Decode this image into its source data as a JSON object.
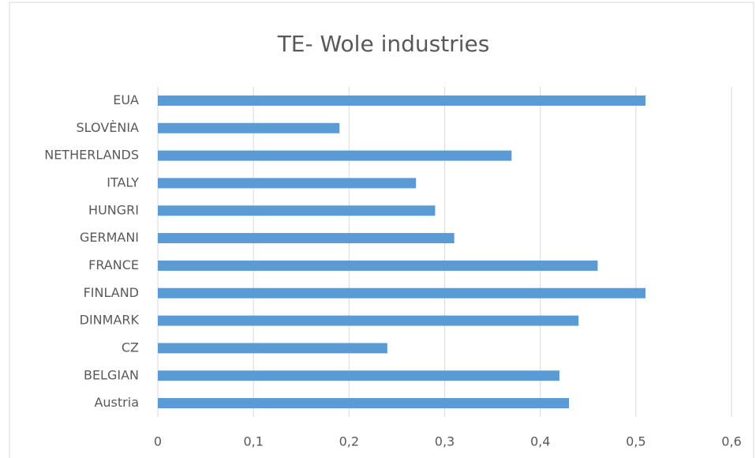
{
  "chart_data": {
    "type": "bar",
    "orientation": "horizontal",
    "title": "TE- Wole industries",
    "categories": [
      "Austria",
      "BELGIAN",
      "CZ",
      "DINMARK",
      "FINLAND",
      "FRANCE",
      "GERMANI",
      "HUNGRI",
      "ITALY",
      "NETHERLANDS",
      "SLOVÈNIA",
      "EUA"
    ],
    "values": [
      0.43,
      0.42,
      0.24,
      0.44,
      0.51,
      0.46,
      0.31,
      0.29,
      0.27,
      0.37,
      0.19,
      0.51
    ],
    "color": "#5b9bd5",
    "xlim": [
      0,
      0.6
    ],
    "xticks": [
      0,
      {
        "value": 0.1,
        "label": "0,1"
      },
      {
        "value": 0.2,
        "label": "0,2"
      },
      {
        "value": 0.3,
        "label": "0,3"
      },
      {
        "value": 0.4,
        "label": "0,4"
      },
      {
        "value": 0.5,
        "label": "0,5"
      },
      {
        "value": 0.6,
        "label": "0,6"
      }
    ],
    "grid": true
  }
}
